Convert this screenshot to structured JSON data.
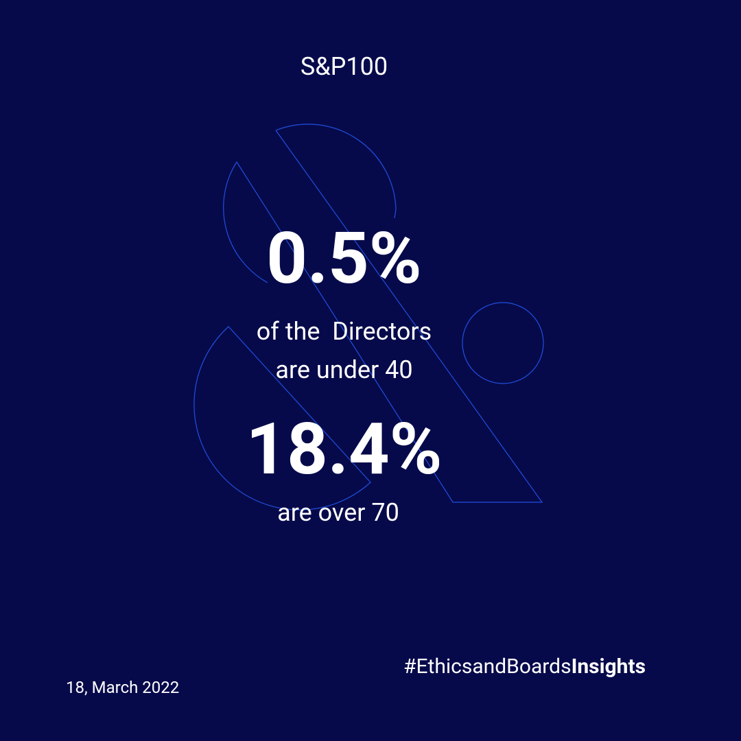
{
  "header": {
    "title": "S&P100"
  },
  "stats": [
    {
      "figure": "0.5%",
      "caption_lines": [
        "of the  Directors",
        "are under 40"
      ]
    },
    {
      "figure": "18.4%",
      "caption_lines": [
        "are over 70"
      ]
    }
  ],
  "footer": {
    "hashtag": "#EthicsandBoards",
    "hashtag_bold": "Insights",
    "date": "18, March 2022"
  }
}
